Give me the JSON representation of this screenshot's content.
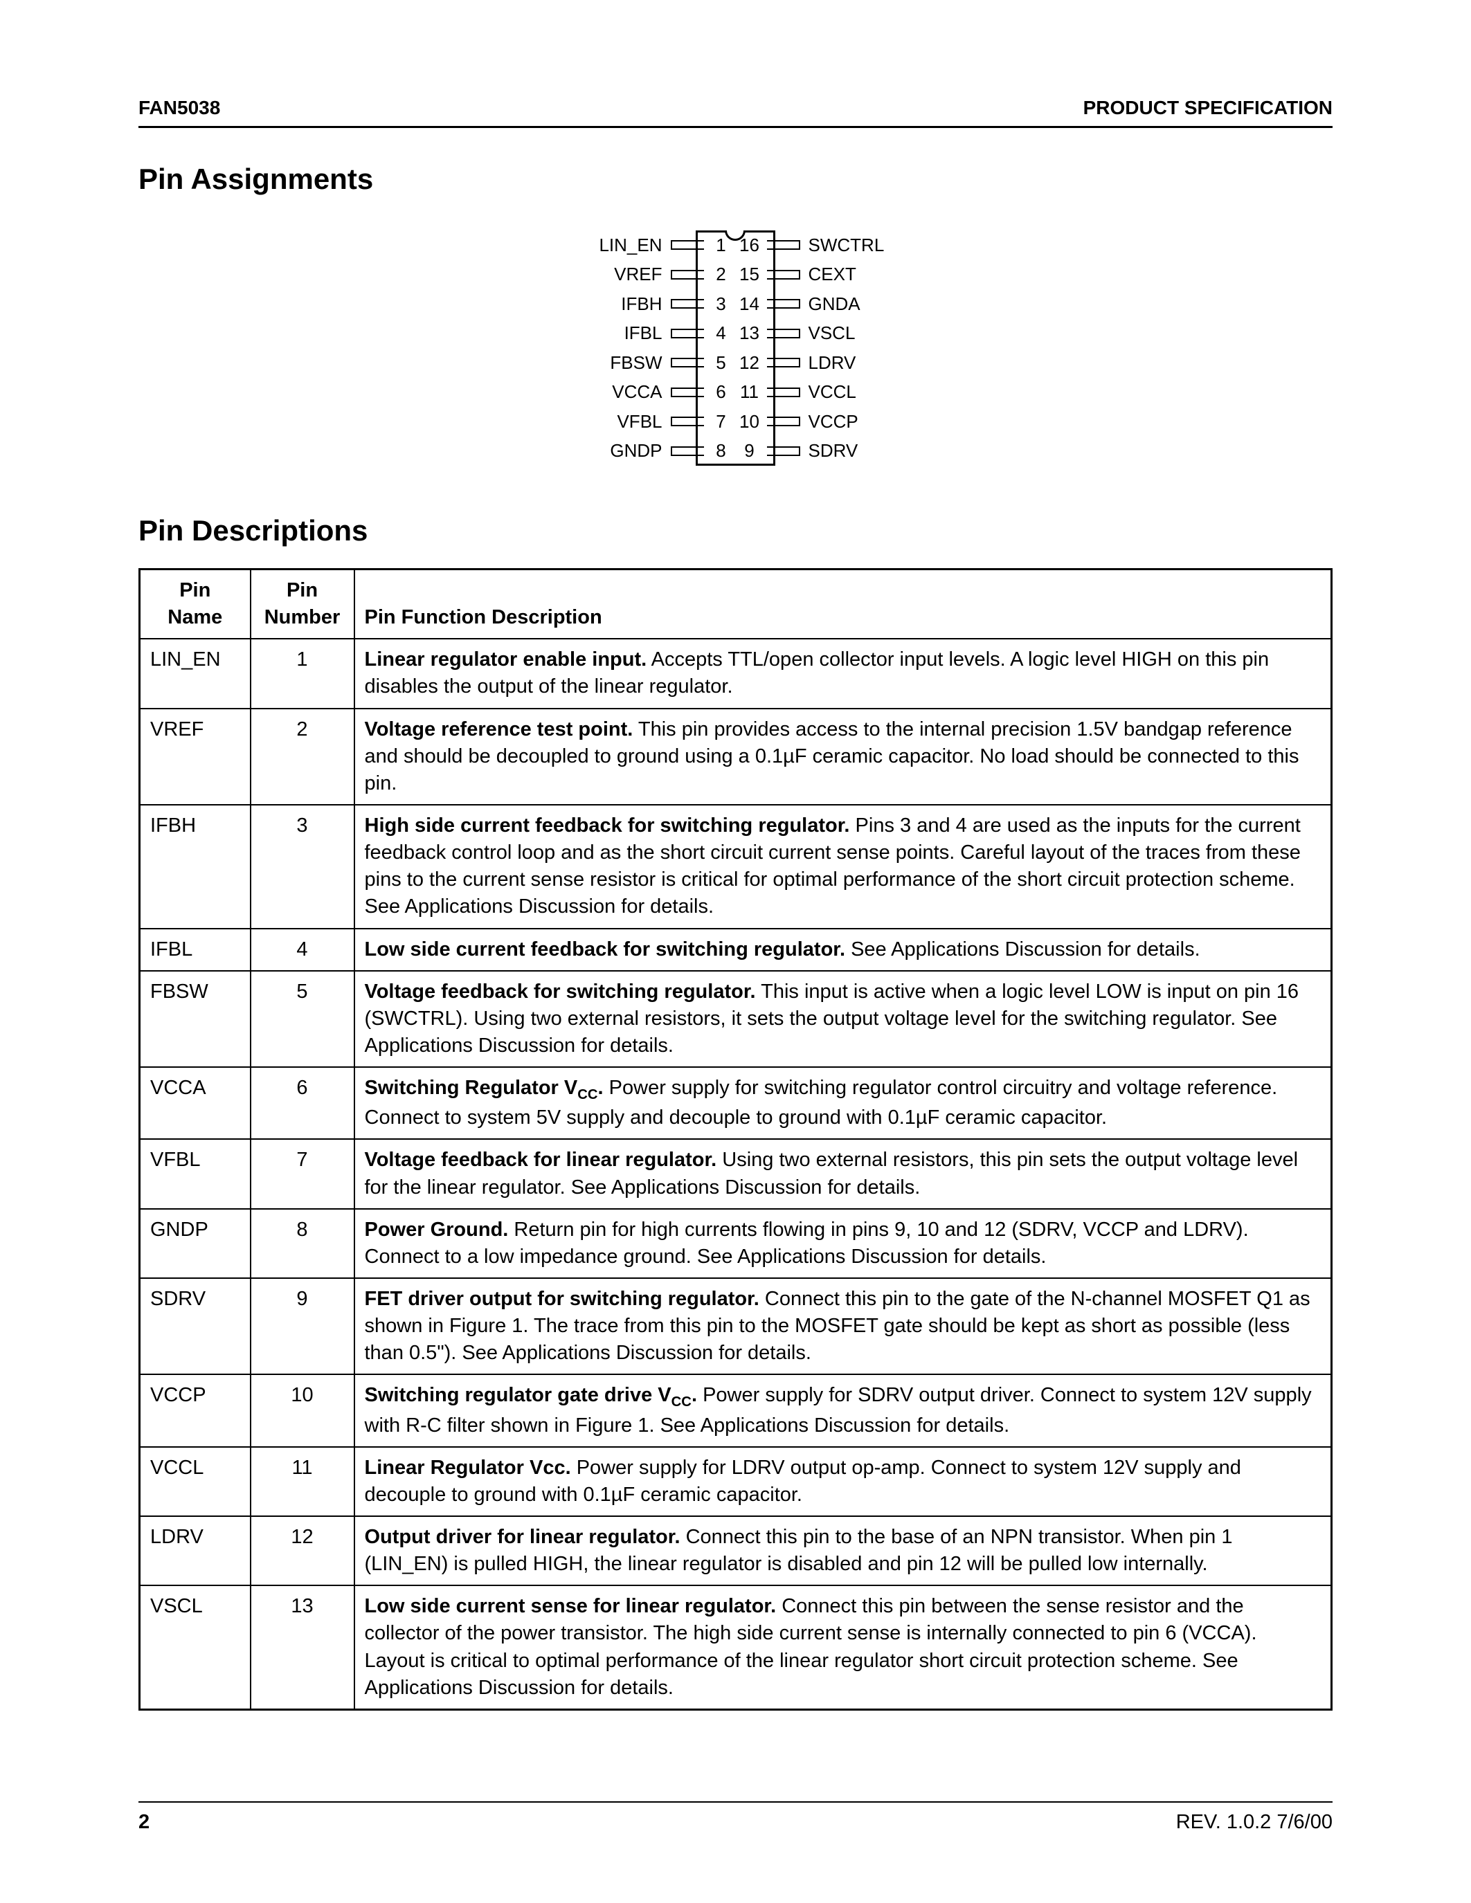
{
  "header": {
    "left": "FAN5038",
    "right": "PRODUCT SPECIFICATION"
  },
  "section_pin_assignments": "Pin Assignments",
  "section_pin_descriptions": "Pin Descriptions",
  "pinout": {
    "left": [
      {
        "label": "LIN_EN",
        "num": "1"
      },
      {
        "label": "VREF",
        "num": "2"
      },
      {
        "label": "IFBH",
        "num": "3"
      },
      {
        "label": "IFBL",
        "num": "4"
      },
      {
        "label": "FBSW",
        "num": "5"
      },
      {
        "label": "VCCA",
        "num": "6"
      },
      {
        "label": "VFBL",
        "num": "7"
      },
      {
        "label": "GNDP",
        "num": "8"
      }
    ],
    "right": [
      {
        "label": "SWCTRL",
        "num": "16"
      },
      {
        "label": "CEXT",
        "num": "15"
      },
      {
        "label": "GNDA",
        "num": "14"
      },
      {
        "label": "VSCL",
        "num": "13"
      },
      {
        "label": "LDRV",
        "num": "12"
      },
      {
        "label": "VCCL",
        "num": "11"
      },
      {
        "label": "VCCP",
        "num": "10"
      },
      {
        "label": "SDRV",
        "num": "9"
      }
    ]
  },
  "table": {
    "headers": {
      "name": "Pin Name",
      "num": "Pin Number",
      "desc": "Pin Function Description"
    },
    "rows": [
      {
        "name": "LIN_EN",
        "num": "1",
        "bold": "Linear regulator enable input.",
        "rest": " Accepts TTL/open collector input levels. A logic level HIGH on this pin disables the output of the linear regulator."
      },
      {
        "name": "VREF",
        "num": "2",
        "bold": "Voltage reference test point.",
        "rest": " This pin provides access to the internal precision 1.5V bandgap reference and should be decoupled to ground using a 0.1µF ceramic capacitor. No load should be connected to this pin."
      },
      {
        "name": "IFBH",
        "num": "3",
        "bold": "High side current feedback for switching regulator.",
        "rest": " Pins 3 and 4 are used as the inputs for the current feedback control loop and as the short circuit current sense points. Careful layout of the traces from these pins to the current sense resistor is critical for optimal performance of the short circuit protection scheme. See Applications Discussion for details."
      },
      {
        "name": "IFBL",
        "num": "4",
        "bold": "Low side current feedback for switching regulator.",
        "rest": " See Applications Discussion for details."
      },
      {
        "name": "FBSW",
        "num": "5",
        "bold": "Voltage feedback for switching regulator.",
        "rest": " This input is active when a logic level LOW is input on pin 16 (SWCTRL). Using two external resistors, it sets the output voltage level for the switching regulator. See Applications Discussion for details."
      },
      {
        "name": "VCCA",
        "num": "6",
        "bold": "Switching Regulator V<sub>CC</sub>.",
        "rest": " Power supply for switching regulator control circuitry and voltage reference. Connect to system 5V supply and decouple to ground with 0.1µF ceramic capacitor."
      },
      {
        "name": "VFBL",
        "num": "7",
        "bold": "Voltage feedback for linear regulator.",
        "rest": " Using two external resistors, this pin sets the output voltage level for the linear regulator. See Applications Discussion for details."
      },
      {
        "name": "GNDP",
        "num": "8",
        "bold": "Power Ground.",
        "rest": " Return pin for high currents flowing in pins 9, 10 and 12 (SDRV, VCCP and LDRV). Connect to a low impedance ground. See Applications Discussion for details."
      },
      {
        "name": "SDRV",
        "num": "9",
        "bold": "FET driver output for switching regulator.",
        "rest": " Connect this pin to the gate of the N-channel MOSFET Q1 as shown in Figure 1. The trace from this pin to the MOSFET gate should be kept as short as possible (less than 0.5\"). See Applications Discussion for details."
      },
      {
        "name": "VCCP",
        "num": "10",
        "bold": "Switching regulator gate drive V<sub>CC</sub>.",
        "rest": " Power supply for SDRV output driver. Connect to system 12V supply with R-C filter shown in Figure 1. See Applications Discussion for details."
      },
      {
        "name": "VCCL",
        "num": "11",
        "bold": "Linear Regulator Vcc.",
        "rest": " Power supply for LDRV output op-amp. Connect to system 12V supply and decouple to ground with 0.1µF ceramic capacitor."
      },
      {
        "name": "LDRV",
        "num": "12",
        "bold": "Output driver for linear regulator.",
        "rest": " Connect this pin to the base of an NPN transistor. When pin 1 (LIN_EN) is pulled HIGH, the linear regulator is disabled and pin 12 will be pulled low internally."
      },
      {
        "name": "VSCL",
        "num": "13",
        "bold": "Low side current sense for linear regulator.",
        "rest": " Connect this pin between the sense resistor and the collector of the power transistor. The high side current sense is internally connected to pin 6 (VCCA). Layout is critical to optimal performance of the linear regulator short circuit protection scheme. See Applications Discussion for details."
      }
    ]
  },
  "footer": {
    "page": "2",
    "rev": "REV. 1.0.2 7/6/00"
  }
}
